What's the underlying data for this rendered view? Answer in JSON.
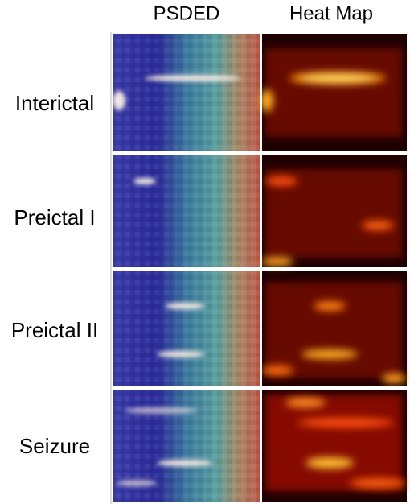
{
  "columns": [
    "PSDED",
    "Heat Map"
  ],
  "rows": [
    "Interictal",
    "Preictal I",
    "Preictal II",
    "Seizure"
  ]
}
